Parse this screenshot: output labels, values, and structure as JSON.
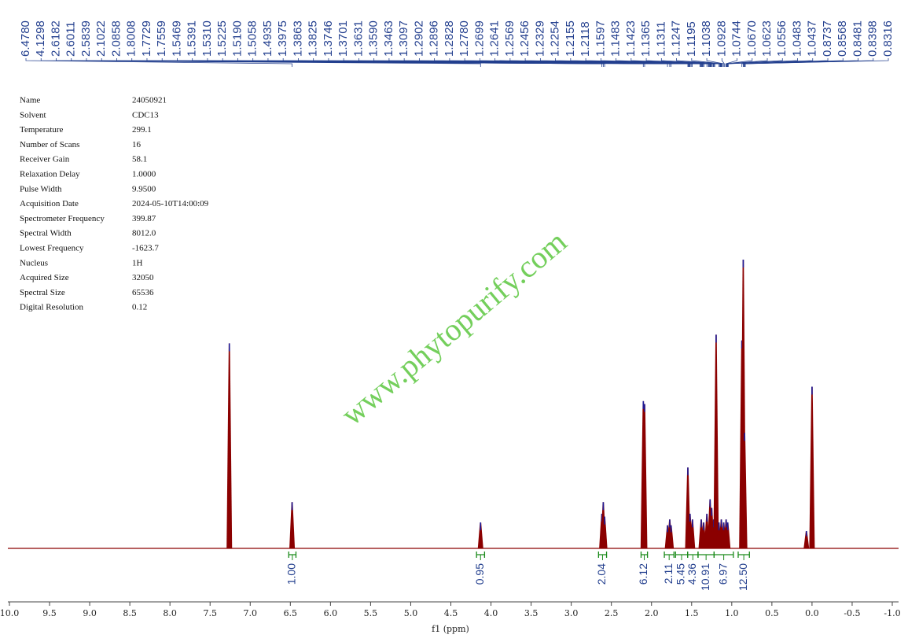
{
  "chart_data": {
    "type": "nmr",
    "x_label": "f1 (ppm)",
    "xlim": [
      10.0,
      -1.0
    ],
    "xticks": [
      {
        "value": 10.0,
        "label": "10.0"
      },
      9.5,
      {
        "value": 9.0,
        "label": "9.0"
      },
      8.5,
      {
        "value": 8.0,
        "label": "8.0"
      },
      7.5,
      {
        "value": 7.0,
        "label": "7.0"
      },
      6.5,
      {
        "value": 6.0,
        "label": "6.0"
      },
      5.5,
      {
        "value": 5.0,
        "label": "5.0"
      },
      4.5,
      {
        "value": 4.0,
        "label": "4.0"
      },
      3.5,
      {
        "value": 3.0,
        "label": "3.0"
      },
      2.5,
      {
        "value": 2.0,
        "label": "2.0"
      },
      1.5,
      {
        "value": 1.0,
        "label": "1.0"
      },
      0.5,
      {
        "value": 0.0,
        "label": "0.0"
      },
      -0.5,
      {
        "value": -1.0,
        "label": "-1.0"
      }
    ],
    "ylim": [
      0,
      100
    ],
    "color": "#8b0000",
    "tip_color": "#1c1c9a",
    "peaks": {
      "x": [
        7.26,
        6.478,
        4.13,
        2.618,
        2.601,
        2.584,
        2.102,
        2.086,
        1.8,
        1.773,
        1.756,
        1.547,
        1.52,
        1.49,
        1.38,
        1.35,
        1.31,
        1.27,
        1.25,
        1.225,
        1.195,
        1.16,
        1.13,
        1.1,
        1.07,
        1.05,
        0.874,
        0.857,
        0.84,
        0.07,
        0.0
      ],
      "heights": [
        71,
        16,
        9,
        12,
        16,
        11,
        51,
        50,
        8,
        10,
        8,
        28,
        12,
        10,
        10,
        9,
        12,
        17,
        14,
        10,
        74,
        9,
        10,
        9,
        10,
        9,
        72,
        100,
        40,
        6,
        56
      ]
    },
    "peak_labels": [
      {
        "value": 6.478,
        "label": "6.4780"
      },
      {
        "value": 4.1298,
        "label": "4.1298"
      },
      {
        "value": 2.6182,
        "label": "2.6182"
      },
      {
        "value": 2.6011,
        "label": "2.6011"
      },
      {
        "value": 2.5839,
        "label": "2.5839"
      },
      {
        "value": 2.1022,
        "label": "2.1022"
      },
      {
        "value": 2.0858,
        "label": "2.0858"
      },
      {
        "value": 1.8008,
        "label": "1.8008"
      },
      {
        "value": 1.7729,
        "label": "1.7729"
      },
      {
        "value": 1.7559,
        "label": "1.7559"
      },
      {
        "value": 1.5469,
        "label": "1.5469"
      },
      {
        "value": 1.5391,
        "label": "1.5391"
      },
      {
        "value": 1.531,
        "label": "1.5310"
      },
      {
        "value": 1.5225,
        "label": "1.5225"
      },
      {
        "value": 1.519,
        "label": "1.5190"
      },
      {
        "value": 1.5058,
        "label": "1.5058"
      },
      {
        "value": 1.4935,
        "label": "1.4935"
      },
      {
        "value": 1.3975,
        "label": "1.3975"
      },
      {
        "value": 1.3863,
        "label": "1.3863"
      },
      {
        "value": 1.3825,
        "label": "1.3825"
      },
      {
        "value": 1.3746,
        "label": "1.3746"
      },
      {
        "value": 1.3701,
        "label": "1.3701"
      },
      {
        "value": 1.3631,
        "label": "1.3631"
      },
      {
        "value": 1.359,
        "label": "1.3590"
      },
      {
        "value": 1.3463,
        "label": "1.3463"
      },
      {
        "value": 1.3097,
        "label": "1.3097"
      },
      {
        "value": 1.2902,
        "label": "1.2902"
      },
      {
        "value": 1.2896,
        "label": "1.2896"
      },
      {
        "value": 1.2828,
        "label": "1.2828"
      },
      {
        "value": 1.278,
        "label": "1.2780"
      },
      {
        "value": 1.2699,
        "label": "1.2699"
      },
      {
        "value": 1.2641,
        "label": "1.2641"
      },
      {
        "value": 1.2569,
        "label": "1.2569"
      },
      {
        "value": 1.2456,
        "label": "1.2456"
      },
      {
        "value": 1.2329,
        "label": "1.2329"
      },
      {
        "value": 1.2254,
        "label": "1.2254"
      },
      {
        "value": 1.2155,
        "label": "1.2155"
      },
      {
        "value": 1.2118,
        "label": "1.2118"
      },
      {
        "value": 1.1597,
        "label": "1.1597"
      },
      {
        "value": 1.1483,
        "label": "1.1483"
      },
      {
        "value": 1.1423,
        "label": "1.1423"
      },
      {
        "value": 1.1365,
        "label": "1.1365"
      },
      {
        "value": 1.1311,
        "label": "1.1311"
      },
      {
        "value": 1.1247,
        "label": "1.1247"
      },
      {
        "value": 1.1195,
        "label": "1.1195"
      },
      {
        "value": 1.1038,
        "label": "1.1038"
      },
      {
        "value": 1.0928,
        "label": "1.0928"
      },
      {
        "value": 1.0744,
        "label": "1.0744"
      },
      {
        "value": 1.067,
        "label": "1.0670"
      },
      {
        "value": 1.0623,
        "label": "1.0623"
      },
      {
        "value": 1.0556,
        "label": "1.0556"
      },
      {
        "value": 1.0483,
        "label": "1.0483"
      },
      {
        "value": 1.0437,
        "label": "1.0437"
      },
      {
        "value": 0.8737,
        "label": "0.8737"
      },
      {
        "value": 0.8568,
        "label": "0.8568"
      },
      {
        "value": 0.8481,
        "label": "0.8481"
      },
      {
        "value": 0.8398,
        "label": "0.8398"
      },
      {
        "value": 0.8316,
        "label": "0.8316"
      }
    ],
    "integrals": {
      "color": "#1a8a1a",
      "label_color": "#24408f",
      "ranges": [
        [
          6.52,
          6.43
        ],
        [
          4.18,
          4.08
        ],
        [
          2.66,
          2.56
        ],
        [
          2.13,
          2.05
        ],
        [
          1.84,
          1.72
        ],
        [
          1.7,
          1.55
        ],
        [
          1.55,
          1.42
        ],
        [
          1.42,
          1.22
        ],
        [
          1.22,
          0.98
        ],
        [
          0.92,
          0.78
        ]
      ],
      "values": [
        1,
        0.95,
        2.04,
        6.12,
        2.11,
        5.45,
        4.36,
        10.91,
        6.97,
        12.5
      ],
      "value_labels": [
        "1.00",
        "0.95",
        "2.04",
        "6.12",
        "2.11",
        "5.45",
        "4.36",
        "10.91",
        "6.97",
        "12.50"
      ]
    },
    "parameters": [
      [
        "Name",
        "24050921"
      ],
      [
        "Solvent",
        "CDC13"
      ],
      [
        "Temperature",
        "299.1"
      ],
      [
        "Number of Scans",
        "16"
      ],
      [
        "Receiver Gain",
        "58.1"
      ],
      [
        "Relaxation Delay",
        "1.0000"
      ],
      [
        "Pulse Width",
        "9.9500"
      ],
      [
        "Acquisition Date",
        "2024-05-10T14:00:09"
      ],
      [
        "Spectrometer Frequency",
        "399.87"
      ],
      [
        "Spectral Width",
        "8012.0"
      ],
      [
        "Lowest Frequency",
        "-1623.7"
      ],
      [
        "Nucleus",
        "1H"
      ],
      [
        "Acquired Size",
        "32050"
      ],
      [
        "Spectral Size",
        "65536"
      ],
      [
        "Digital Resolution",
        "0.12"
      ]
    ],
    "watermark": "www.phytopurify.com"
  }
}
